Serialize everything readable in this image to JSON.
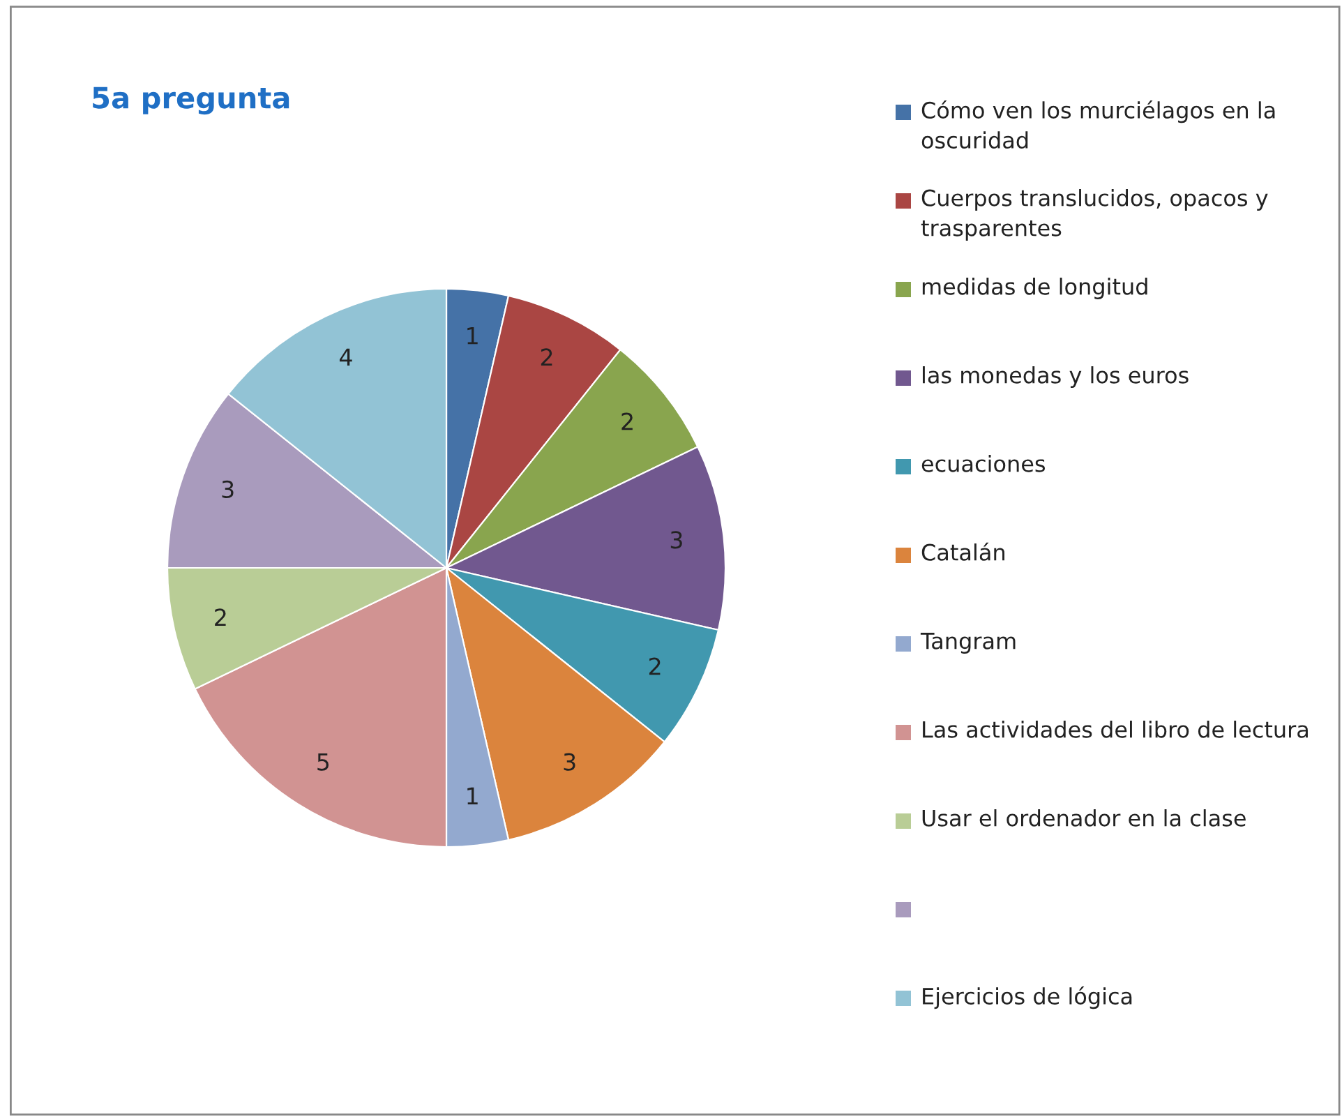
{
  "chart_data": {
    "type": "pie",
    "title": "5a pregunta",
    "categories": [
      "Cómo ven los murciélagos en la oscuridad",
      "Cuerpos translucidos, opacos y trasparentes",
      "medidas de longitud",
      "las monedas y los euros",
      "ecuaciones",
      "Catalán",
      "Tangram",
      "Las actividades del libro de lectura",
      "Usar el ordenador en la clase",
      null,
      "Ejercicios de lógica"
    ],
    "values": [
      1,
      2,
      2,
      3,
      2,
      3,
      1,
      5,
      2,
      3,
      4
    ],
    "colors": [
      "#4572a7",
      "#aa4643",
      "#89a54e",
      "#71588f",
      "#4198af",
      "#db843d",
      "#93a9cf",
      "#d19392",
      "#b9cd96",
      "#a99bbd",
      "#92c3d5"
    ],
    "data_labels": true,
    "legend": "right"
  }
}
